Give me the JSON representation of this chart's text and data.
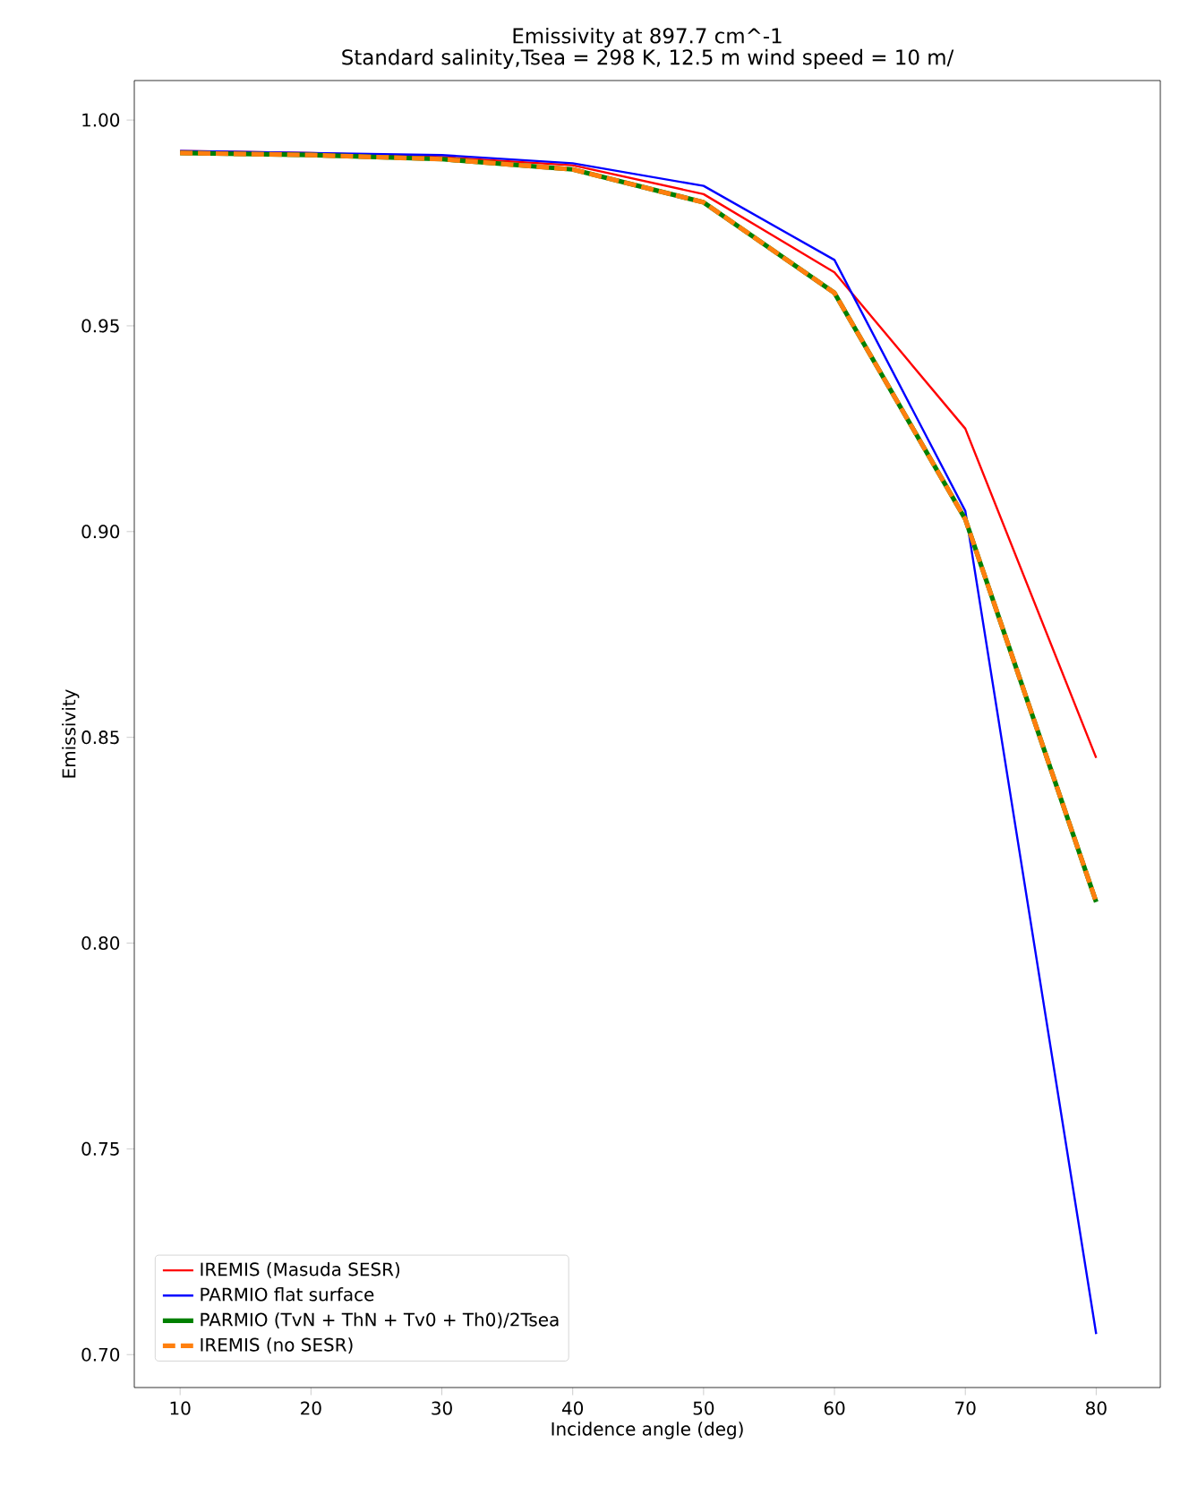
{
  "chart_data": {
    "type": "line",
    "title": "Emissivity at 897.7 cm^-1",
    "subtitle": "Standard salinity,Tsea = 298 K, 12.5 m wind speed = 10 m/",
    "xlabel": "Incidence angle (deg)",
    "ylabel": "Emissivity",
    "x": [
      10,
      20,
      30,
      40,
      50,
      60,
      70,
      80
    ],
    "series": [
      {
        "name": "IREMIS (Masuda SESR)",
        "color": "#ff0000",
        "line_style": "solid",
        "values": [
          0.9925,
          0.992,
          0.991,
          0.989,
          0.982,
          0.963,
          0.925,
          0.845
        ]
      },
      {
        "name": "PARMIO flat surface",
        "color": "#0000ff",
        "line_style": "solid",
        "values": [
          0.9925,
          0.992,
          0.9915,
          0.9895,
          0.984,
          0.966,
          0.905,
          0.705
        ]
      },
      {
        "name": "PARMIO (TvN + ThN + Tv0 + Th0)/2Tsea",
        "color": "#008000",
        "line_style": "solid",
        "values": [
          0.992,
          0.9915,
          0.9905,
          0.988,
          0.98,
          0.958,
          0.903,
          0.81
        ]
      },
      {
        "name": "IREMIS (no SESR)",
        "color": "#ff7f0e",
        "line_style": "dashed",
        "values": [
          0.992,
          0.9915,
          0.9905,
          0.988,
          0.98,
          0.958,
          0.903,
          0.81
        ]
      }
    ],
    "xlim": [
      6.5,
      84.9
    ],
    "ylim": [
      0.692,
      1.0096
    ],
    "xticks": [
      10,
      20,
      30,
      40,
      50,
      60,
      70,
      80
    ],
    "yticks": [
      {
        "value": 0.7,
        "label": "0.70"
      },
      {
        "value": 0.75,
        "label": "0.75"
      },
      {
        "value": 0.8,
        "label": "0.80"
      },
      {
        "value": 0.85,
        "label": "0.85"
      },
      {
        "value": 0.9,
        "label": "0.90"
      },
      {
        "value": 0.95,
        "label": "0.95"
      },
      {
        "value": 1.0,
        "label": "1.00"
      }
    ],
    "grid": false,
    "legend": "bottom left",
    "marker": "none"
  }
}
